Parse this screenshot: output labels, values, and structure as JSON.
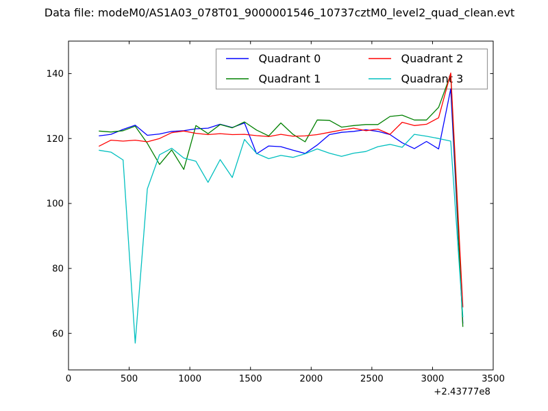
{
  "title": "Data file: modeM0/AS1A03_078T01_9000001546_10737cztM0_level2_quad_clean.evt",
  "chart_data": {
    "type": "line",
    "title": "Data file: modeM0/AS1A03_078T01_9000001546_10737cztM0_level2_quad_clean.evt",
    "xlabel": "",
    "ylabel": "",
    "xlim": [
      0,
      3500
    ],
    "ylim": [
      48.75,
      150
    ],
    "xticks": [
      0,
      500,
      1000,
      1500,
      2000,
      2500,
      3000,
      3500
    ],
    "yticks": [
      60,
      80,
      100,
      120,
      140
    ],
    "x_offset_label": "+2.43777e8",
    "grid": false,
    "legend_position": "upper center",
    "frame_color": "#000000",
    "legend_border_color": "#999999",
    "x": [
      250,
      350,
      450,
      550,
      650,
      750,
      850,
      950,
      1050,
      1150,
      1250,
      1350,
      1450,
      1550,
      1650,
      1750,
      1850,
      1950,
      2050,
      2150,
      2250,
      2350,
      2450,
      2550,
      2650,
      2750,
      2850,
      2950,
      3050,
      3150,
      3250
    ],
    "series": [
      {
        "name": "Quadrant 0",
        "color": "#0000ff",
        "values": [
          120.8,
          121.3,
          122.8,
          124.1,
          121.0,
          121.4,
          122.2,
          122.4,
          123.0,
          123.2,
          124.4,
          123.4,
          124.8,
          115.3,
          117.7,
          117.5,
          116.4,
          115.4,
          118.0,
          121.2,
          121.9,
          122.2,
          122.7,
          122.2,
          121.2,
          118.7,
          116.9,
          119.1,
          116.8,
          135.3,
          63.0
        ]
      },
      {
        "name": "Quadrant 1",
        "color": "#008000",
        "values": [
          122.3,
          122.0,
          122.4,
          123.8,
          118.5,
          112.0,
          116.5,
          110.5,
          124.0,
          121.5,
          124.3,
          123.3,
          125.1,
          122.6,
          120.8,
          124.8,
          121.3,
          119.0,
          125.7,
          125.6,
          123.5,
          124.0,
          124.3,
          124.3,
          126.8,
          127.2,
          125.7,
          125.7,
          129.6,
          139.8,
          62.0
        ]
      },
      {
        "name": "Quadrant 2",
        "color": "#ff0000",
        "values": [
          117.6,
          119.5,
          119.2,
          119.5,
          119.0,
          120.0,
          121.8,
          122.3,
          121.6,
          121.2,
          121.5,
          121.2,
          121.3,
          120.9,
          120.6,
          121.3,
          120.7,
          120.8,
          121.2,
          121.9,
          122.6,
          123.2,
          122.4,
          122.9,
          121.3,
          125.0,
          124.0,
          124.4,
          126.4,
          140.2,
          68.0
        ]
      },
      {
        "name": "Quadrant 3",
        "color": "#00bfbf",
        "values": [
          116.4,
          115.8,
          113.4,
          57.0,
          104.5,
          115.0,
          117.0,
          114.0,
          113.0,
          106.5,
          113.5,
          108.0,
          119.7,
          115.4,
          113.8,
          114.8,
          114.2,
          115.3,
          116.8,
          115.5,
          114.5,
          115.5,
          116.0,
          117.5,
          118.2,
          117.3,
          121.3,
          120.7,
          120.0,
          119.2,
          65.0
        ]
      }
    ]
  }
}
